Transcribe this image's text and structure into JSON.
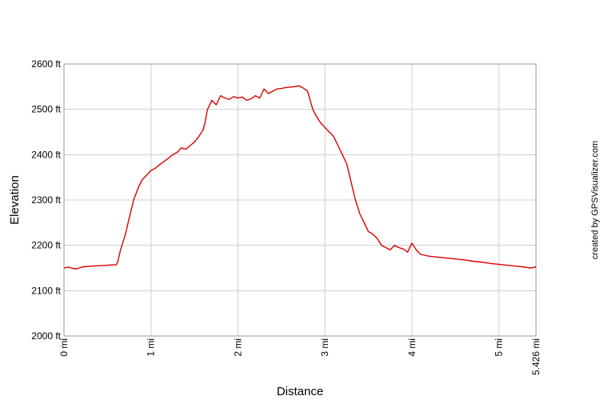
{
  "chart_data": {
    "type": "line",
    "xlabel": "Distance",
    "ylabel": "Elevation",
    "credit": "created by GPSVisualizer.com",
    "x_unit": "mi",
    "y_unit": "ft",
    "xlim": [
      0,
      5.426
    ],
    "ylim": [
      2000,
      2600
    ],
    "x_ticks": [
      0,
      1,
      2,
      3,
      4,
      5,
      5.426
    ],
    "x_tick_labels": [
      "0 mi",
      "1 mi",
      "2 mi",
      "3 mi",
      "4 mi",
      "5 mi",
      "5.426 mi"
    ],
    "y_ticks": [
      2000,
      2100,
      2200,
      2300,
      2400,
      2500,
      2600
    ],
    "y_tick_labels": [
      "2000 ft",
      "2100 ft",
      "2200 ft",
      "2300 ft",
      "2400 ft",
      "2500 ft",
      "2600 ft"
    ],
    "grid": true,
    "line_color": "#dd0000",
    "series": [
      {
        "x": [
          0,
          0.05,
          0.1,
          0.15,
          0.2,
          0.3,
          0.4,
          0.5,
          0.55,
          0.6,
          0.62,
          0.65,
          0.7,
          0.75,
          0.8,
          0.83,
          0.86,
          0.9,
          0.95,
          1.0,
          1.05,
          1.1,
          1.15,
          1.2,
          1.25,
          1.3,
          1.35,
          1.4,
          1.45,
          1.5,
          1.55,
          1.6,
          1.62,
          1.65,
          1.7,
          1.75,
          1.8,
          1.85,
          1.9,
          1.95,
          2.0,
          2.05,
          2.1,
          2.15,
          2.2,
          2.25,
          2.3,
          2.35,
          2.4,
          2.45,
          2.5,
          2.55,
          2.6,
          2.65,
          2.7,
          2.75,
          2.8,
          2.83,
          2.86,
          2.9,
          2.95,
          3.0,
          3.05,
          3.1,
          3.15,
          3.2,
          3.25,
          3.3,
          3.35,
          3.4,
          3.45,
          3.5,
          3.55,
          3.6,
          3.65,
          3.7,
          3.75,
          3.8,
          3.85,
          3.9,
          3.95,
          4.0,
          4.05,
          4.1,
          4.2,
          4.3,
          4.4,
          4.5,
          4.6,
          4.7,
          4.8,
          4.9,
          5.0,
          5.1,
          5.2,
          5.3,
          5.35,
          5.4,
          5.426
        ],
        "y": [
          2150,
          2152,
          2149,
          2148,
          2152,
          2154,
          2155,
          2156,
          2157,
          2157,
          2165,
          2190,
          2220,
          2260,
          2300,
          2315,
          2330,
          2345,
          2355,
          2365,
          2370,
          2378,
          2385,
          2392,
          2400,
          2405,
          2415,
          2412,
          2420,
          2428,
          2440,
          2455,
          2470,
          2500,
          2520,
          2510,
          2530,
          2525,
          2522,
          2528,
          2525,
          2527,
          2520,
          2523,
          2530,
          2525,
          2545,
          2535,
          2540,
          2545,
          2546,
          2548,
          2549,
          2550,
          2552,
          2547,
          2540,
          2520,
          2500,
          2485,
          2470,
          2460,
          2450,
          2440,
          2420,
          2400,
          2380,
          2340,
          2300,
          2270,
          2250,
          2230,
          2225,
          2215,
          2200,
          2195,
          2190,
          2200,
          2195,
          2192,
          2185,
          2205,
          2190,
          2180,
          2176,
          2174,
          2172,
          2170,
          2168,
          2165,
          2163,
          2160,
          2158,
          2156,
          2154,
          2152,
          2150,
          2151,
          2153
        ]
      }
    ]
  }
}
